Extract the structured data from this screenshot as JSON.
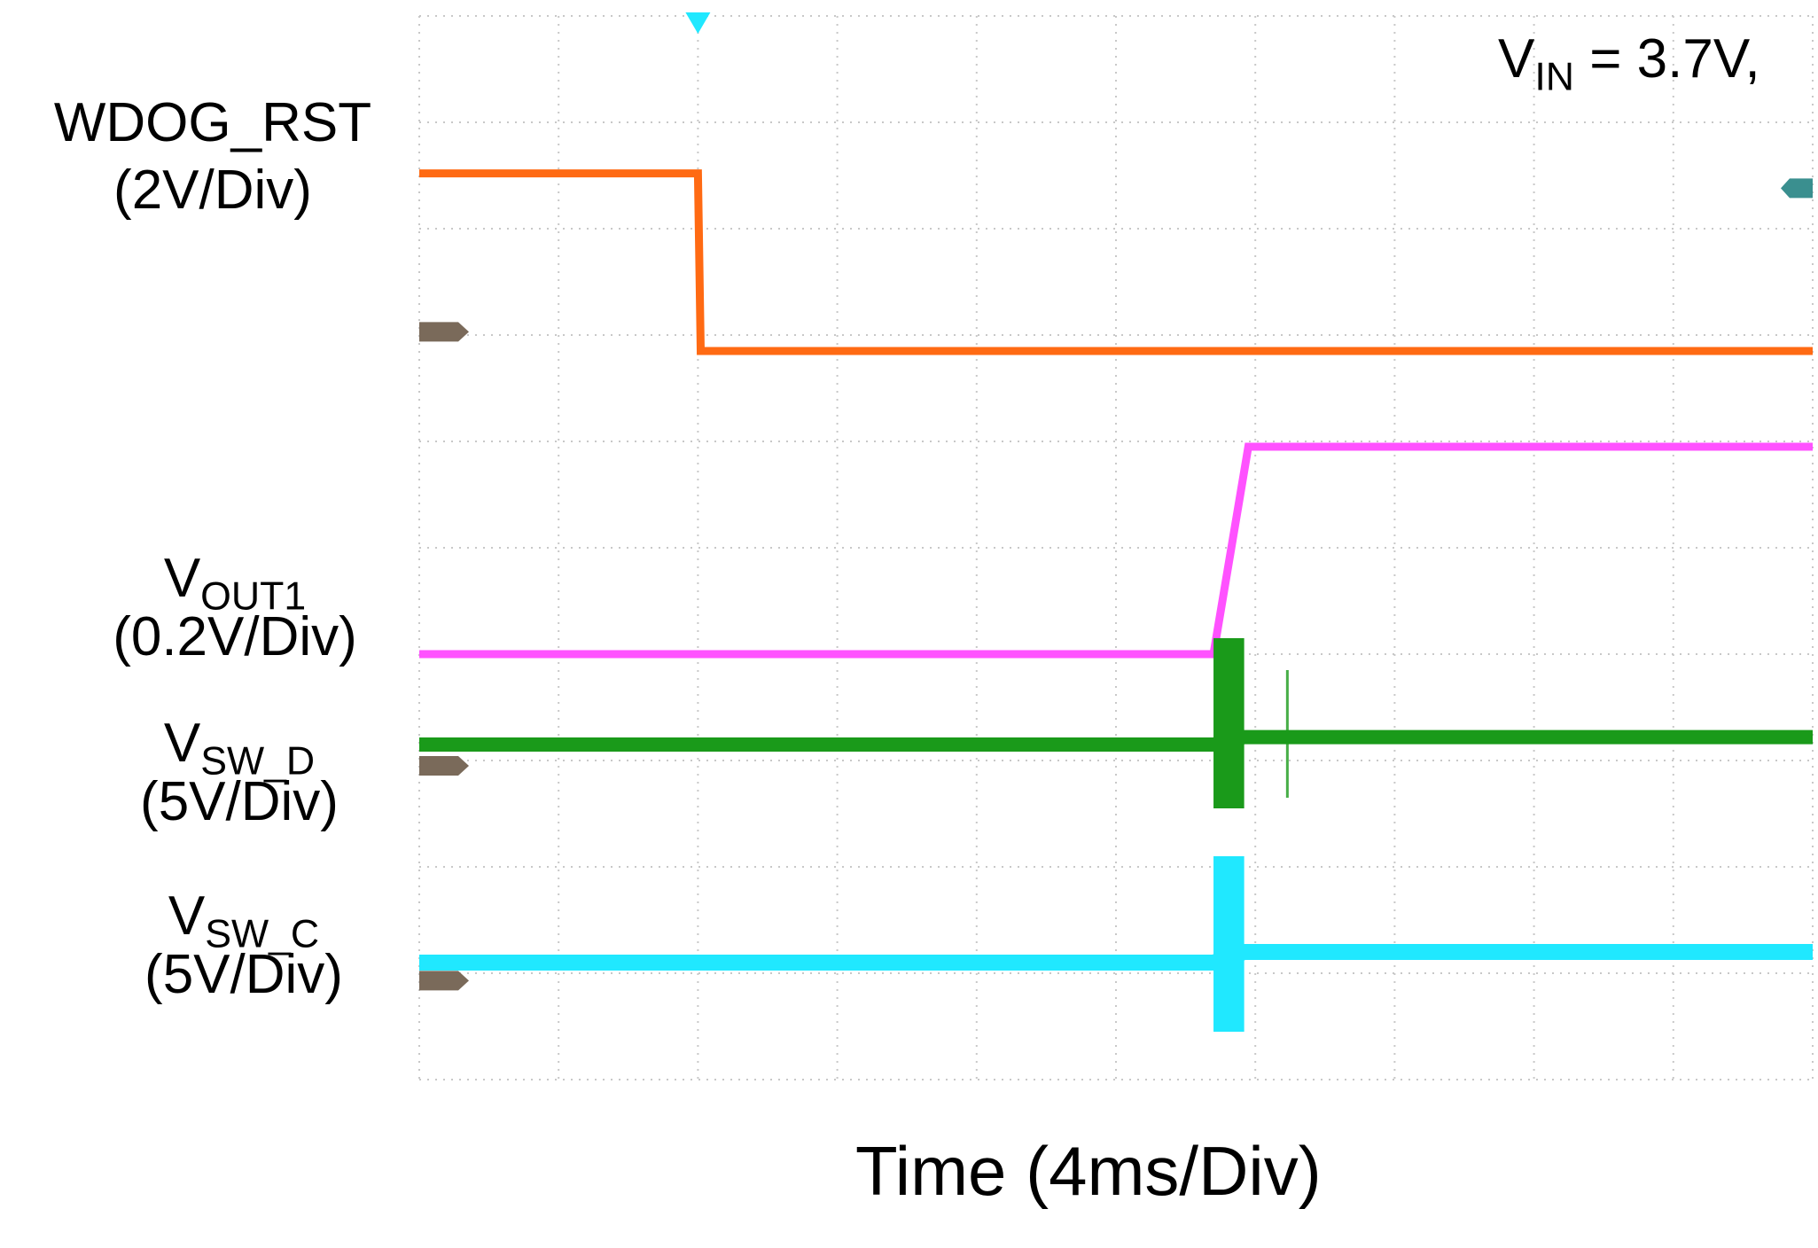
{
  "chart_data": {
    "type": "line",
    "title": "",
    "xlabel": "Time (4ms/Div)",
    "ylabel": "",
    "x_unit": "div",
    "xlim": [
      0,
      10
    ],
    "grid": true,
    "grid_divisions": {
      "x": 10,
      "y": 10
    },
    "annotation": {
      "main": "V",
      "sub": "IN",
      "rest": " = 3.7V,"
    },
    "series": [
      {
        "id": "wdog",
        "name": "WDOG_RST",
        "scale": "(2V/Div)",
        "color": "#ff6a13",
        "points": [
          [
            0,
            1.48
          ],
          [
            2.0,
            1.48
          ],
          [
            2.02,
            3.15
          ],
          [
            10,
            3.15
          ]
        ]
      },
      {
        "id": "vout1",
        "name_main": "V",
        "name_sub": "OUT1",
        "scale": "(0.2V/Div)",
        "color": "#ff52ff",
        "points": [
          [
            0,
            6.0
          ],
          [
            5.7,
            6.0
          ],
          [
            5.95,
            4.05
          ],
          [
            10,
            4.05
          ]
        ]
      },
      {
        "id": "vswd",
        "name_main": "V",
        "name_sub": "SW_D",
        "scale": "(5V/Div)",
        "color": "#1a9a1a",
        "points": [
          [
            0,
            6.85
          ],
          [
            5.7,
            6.85
          ],
          [
            5.92,
            6.78
          ],
          [
            10,
            6.78
          ]
        ],
        "burst": {
          "x": [
            5.7,
            5.92
          ],
          "ylim": [
            5.85,
            7.45
          ]
        },
        "spike": {
          "x": 6.23,
          "ylim": [
            6.15,
            7.35
          ]
        }
      },
      {
        "id": "vswc",
        "name_main": "V",
        "name_sub": "SW_C",
        "scale": "(5V/Div)",
        "color": "#20e8ff",
        "points": [
          [
            0,
            8.9
          ],
          [
            5.7,
            8.9
          ],
          [
            5.92,
            8.8
          ],
          [
            10,
            8.8
          ]
        ],
        "burst": {
          "x": [
            5.7,
            5.92
          ],
          "ylim": [
            7.9,
            9.55
          ]
        }
      }
    ],
    "trigger_x": 2.0,
    "trigger_color": "#20e8ff"
  }
}
